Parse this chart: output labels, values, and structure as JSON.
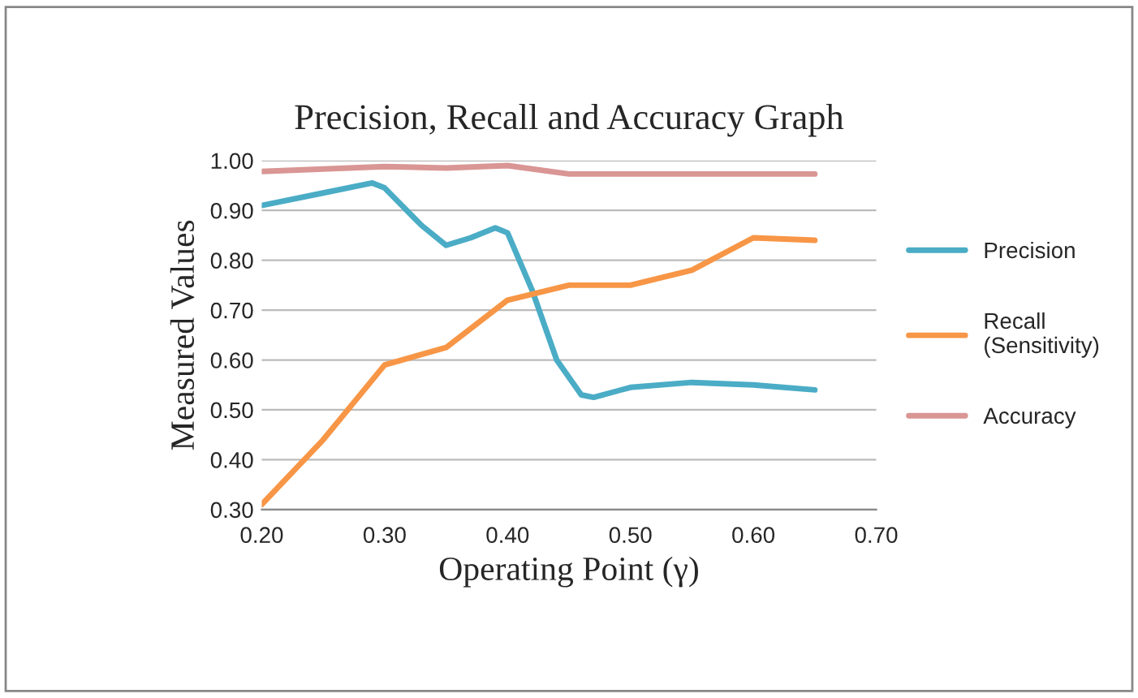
{
  "chart_data": {
    "type": "line",
    "title": "Precision, Recall and Accuracy Graph",
    "xlabel": "Operating Point (γ)",
    "ylabel": "Measured Values",
    "xlim": [
      0.2,
      0.7
    ],
    "xticks": [
      {
        "value": 0.2,
        "label": "0.20"
      },
      {
        "value": 0.3,
        "label": "0.30"
      },
      {
        "value": 0.4,
        "label": "0.40"
      },
      {
        "value": 0.5,
        "label": "0.50"
      },
      {
        "value": 0.6,
        "label": "0.60"
      },
      {
        "value": 0.7,
        "label": "0.70"
      }
    ],
    "ylim": [
      0.3,
      1.0
    ],
    "yticks": [
      {
        "value": 0.3,
        "label": "0.30"
      },
      {
        "value": 0.4,
        "label": "0.40"
      },
      {
        "value": 0.5,
        "label": "0.50"
      },
      {
        "value": 0.6,
        "label": "0.60"
      },
      {
        "value": 0.7,
        "label": "0.70"
      },
      {
        "value": 0.8,
        "label": "0.80"
      },
      {
        "value": 0.9,
        "label": "0.90"
      },
      {
        "value": 1.0,
        "label": "1.00"
      }
    ],
    "grid": "y",
    "legend": "right",
    "marker": "none",
    "line_style": "solid",
    "series": [
      {
        "name": "Precision",
        "color": "#4bacc6",
        "x": [
          0.2,
          0.25,
          0.29,
          0.3,
          0.33,
          0.35,
          0.37,
          0.39,
          0.4,
          0.42,
          0.44,
          0.46,
          0.47,
          0.5,
          0.55,
          0.6,
          0.65
        ],
        "values": [
          0.91,
          0.935,
          0.955,
          0.945,
          0.87,
          0.83,
          0.845,
          0.865,
          0.855,
          0.74,
          0.6,
          0.53,
          0.525,
          0.545,
          0.555,
          0.55,
          0.54
        ]
      },
      {
        "name": "Recall\n(Sensitivity)",
        "color": "#f79646",
        "x": [
          0.2,
          0.25,
          0.3,
          0.35,
          0.4,
          0.45,
          0.5,
          0.55,
          0.6,
          0.65
        ],
        "values": [
          0.31,
          0.44,
          0.59,
          0.625,
          0.72,
          0.75,
          0.75,
          0.78,
          0.845,
          0.84
        ]
      },
      {
        "name": "Accuracy",
        "color": "#d99694",
        "x": [
          0.2,
          0.3,
          0.35,
          0.4,
          0.45,
          0.5,
          0.65
        ],
        "values": [
          0.978,
          0.988,
          0.985,
          0.99,
          0.973,
          0.973,
          0.973
        ]
      }
    ]
  }
}
